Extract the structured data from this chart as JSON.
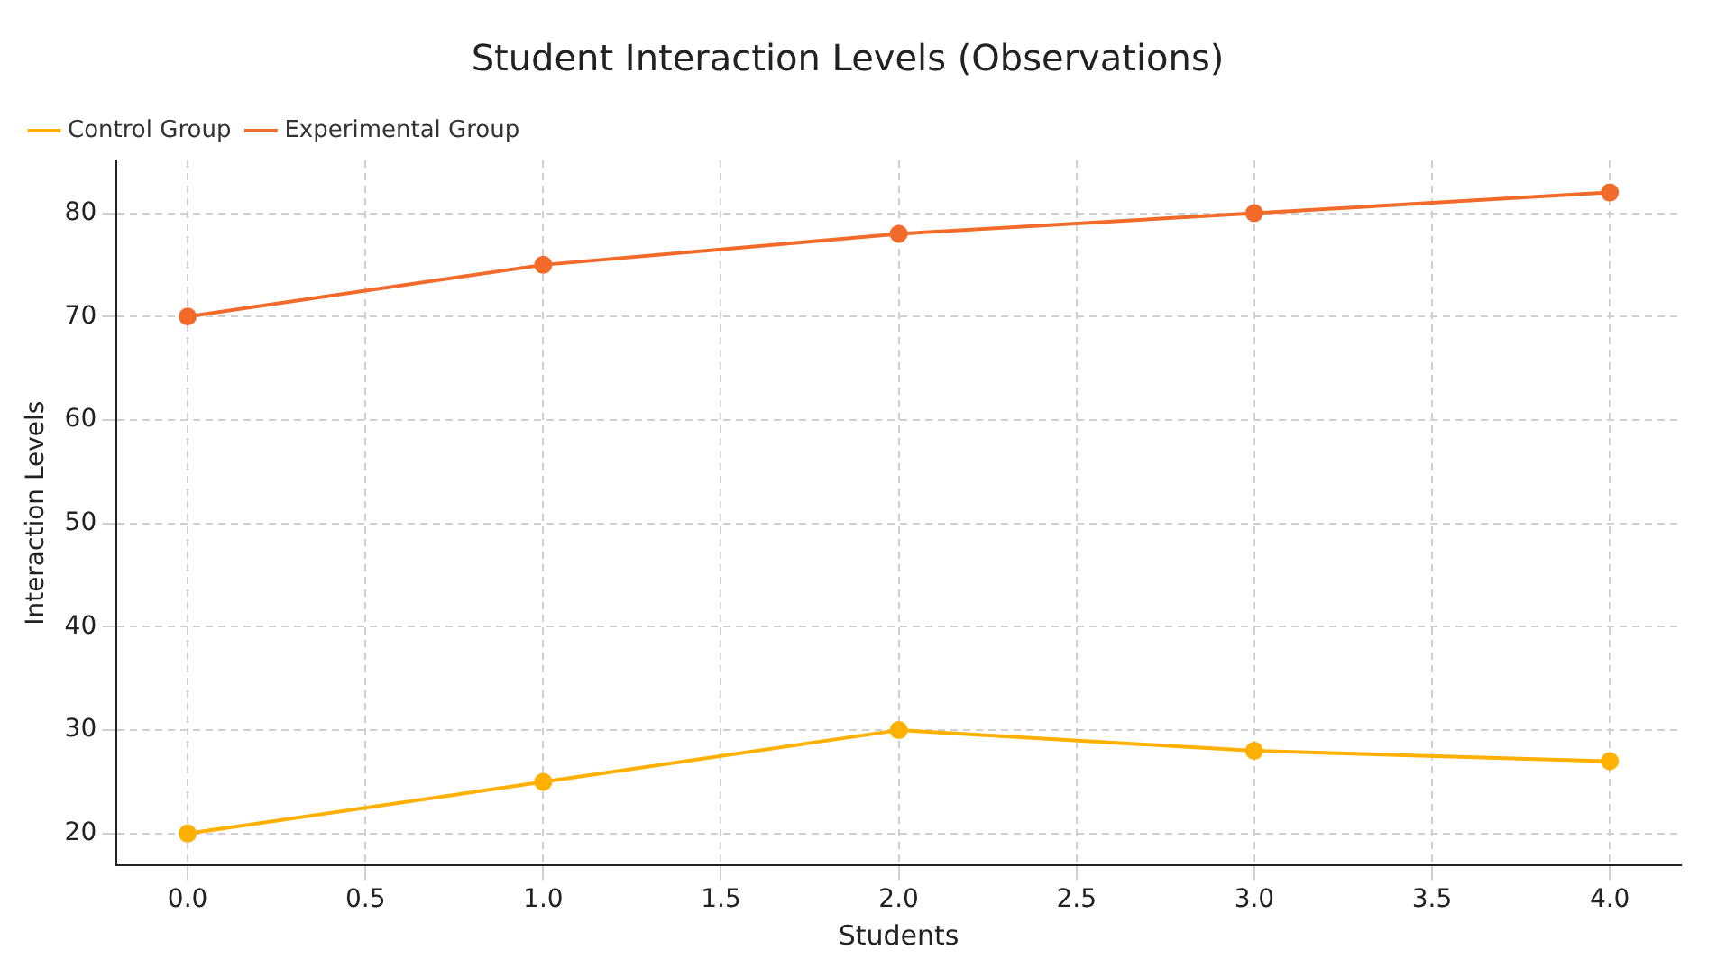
{
  "chart_data": {
    "type": "line",
    "title": "Student Interaction Levels (Observations)",
    "xlabel": "Students",
    "ylabel": "Interaction Levels",
    "x": [
      0,
      1,
      2,
      3,
      4
    ],
    "series": [
      {
        "name": "Control Group",
        "color": "#ffb000",
        "values": [
          20,
          25,
          30,
          28,
          27
        ]
      },
      {
        "name": "Experimental Group",
        "color": "#f26b2a",
        "values": [
          70,
          75,
          78,
          80,
          82
        ]
      }
    ],
    "xlim": [
      -0.2,
      4.2
    ],
    "xticks": [
      {
        "value": 0,
        "label": "0.0"
      },
      {
        "value": 0.5,
        "label": "0.5"
      },
      {
        "value": 1,
        "label": "1.0"
      },
      {
        "value": 1.5,
        "label": "1.5"
      },
      {
        "value": 2,
        "label": "2.0"
      },
      {
        "value": 2.5,
        "label": "2.5"
      },
      {
        "value": 3,
        "label": "3.0"
      },
      {
        "value": 3.5,
        "label": "3.5"
      },
      {
        "value": 4,
        "label": "4.0"
      }
    ],
    "ylim": [
      16.9,
      85.1
    ],
    "yticks": [
      20,
      30,
      40,
      50,
      60,
      70,
      80
    ],
    "grid": true,
    "legend": "top left",
    "marker": "circle",
    "line_style": "solid"
  }
}
